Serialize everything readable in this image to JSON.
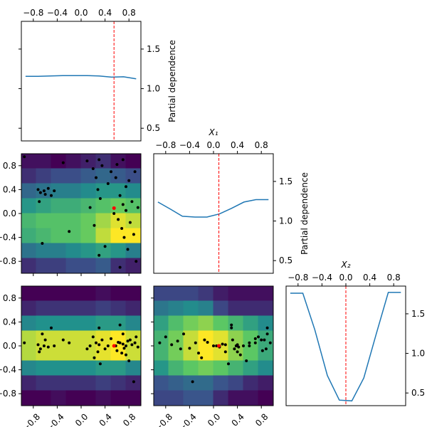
{
  "chart_data": {
    "type": "partial-dependence",
    "ylabel": "Partial dependence",
    "dimension_labels": [
      null,
      "X₁",
      "X₂"
    ],
    "xlim": [
      -1,
      1
    ],
    "xticks": [
      {
        "value": -0.8,
        "label": "−0.8"
      },
      {
        "value": -0.4,
        "label": "−0.4"
      },
      {
        "value": 0,
        "label": "0.0"
      },
      0.4,
      0.8
    ],
    "ylim": [
      0.34,
      1.85
    ],
    "yticks": [
      0.5,
      {
        "value": 1,
        "label": "1.0"
      },
      1.5
    ],
    "line_color": "#1f77b4",
    "minimum_color": "red",
    "point_color": "black",
    "cmap": "viridis_r",
    "pd_x": [
      -0.93,
      -0.72,
      -0.52,
      -0.31,
      -0.11,
      0.1,
      0.3,
      0.51,
      0.71,
      0.92
    ],
    "pd": [
      [
        1.155,
        1.155,
        1.16,
        1.165,
        1.165,
        1.165,
        1.16,
        1.145,
        1.15,
        1.125
      ],
      [
        1.24,
        1.15,
        1.06,
        1.05,
        1.05,
        1.09,
        1.16,
        1.24,
        1.27,
        1.27
      ],
      [
        1.76,
        1.76,
        1.3,
        0.72,
        0.41,
        0.4,
        0.69,
        1.25,
        1.77,
        1.77
      ]
    ],
    "minimum": [
      0.55,
      0.09,
      0.0
    ],
    "samples": [
      [
        -0.95,
        -0.72,
        -0.68,
        -0.62,
        -0.6,
        -0.55,
        -0.5,
        -0.45,
        -0.7,
        -0.65,
        -0.3,
        -0.2,
        0.1,
        0.15,
        0.2,
        0.22,
        0.25,
        0.28,
        0.3,
        0.3,
        0.32,
        0.35,
        0.4,
        0.45,
        0.5,
        0.55,
        0.6,
        0.62,
        0.65,
        0.68,
        0.7,
        0.7,
        0.72,
        0.75,
        0.78,
        0.8,
        0.82,
        0.85,
        0.88,
        0.9,
        0.92,
        0.95,
        0.65,
        0.75,
        0.58
      ],
      [
        0.95,
        0.4,
        0.35,
        0.38,
        0.32,
        0.42,
        0.3,
        0.38,
        0.2,
        -0.5,
        0.85,
        -0.3,
        0.88,
        0.1,
        0.75,
        -0.2,
        0.6,
        0.4,
        0.9,
        -0.7,
        0.25,
        0.8,
        -0.55,
        0.5,
        0.7,
        0.0,
        0.82,
        -0.1,
        0.3,
        -0.25,
        0.15,
        0.9,
        -0.4,
        0.05,
        -0.6,
        0.55,
        -0.15,
        0.2,
        -0.35,
        0.7,
        -0.8,
        0.1,
        -0.9,
        0.45,
        0.6
      ],
      [
        0.05,
        0.02,
        -0.05,
        0.0,
        0.1,
        -0.02,
        0.3,
        0.0,
        -0.1,
        0.2,
        0.1,
        0.05,
        -0.05,
        0.0,
        0.15,
        -0.2,
        0.05,
        -0.1,
        0.3,
        0.02,
        -0.3,
        0.1,
        -0.05,
        0.0,
        0.12,
        0.0,
        -0.08,
        0.06,
        0.35,
        -0.12,
        0.03,
        0.2,
        -0.04,
        0.0,
        0.08,
        -0.25,
        0.1,
        0.02,
        -0.6,
        0.05,
        0.15,
        -0.02,
        0.05,
        -0.15,
        0.0
      ]
    ],
    "pairs": [
      {
        "dims": [
          0,
          1
        ],
        "z": [
          [
            1.7,
            1.7,
            1.75,
            1.7,
            1.65,
            1.6,
            1.7,
            1.75
          ],
          [
            1.6,
            1.55,
            1.5,
            1.5,
            1.45,
            1.4,
            1.45,
            1.5
          ],
          [
            1.4,
            1.35,
            1.3,
            1.3,
            1.25,
            1.2,
            1.2,
            1.25
          ],
          [
            1.2,
            1.15,
            1.1,
            1.1,
            1.05,
            1.0,
            0.95,
            1.0
          ],
          [
            1.05,
            1.0,
            1.0,
            1.0,
            0.95,
            0.85,
            0.75,
            0.8
          ],
          [
            1.1,
            1.05,
            1.0,
            1.0,
            0.95,
            0.8,
            0.7,
            0.7
          ],
          [
            1.35,
            1.3,
            1.3,
            1.25,
            1.2,
            1.15,
            1.2,
            1.3
          ],
          [
            1.6,
            1.55,
            1.55,
            1.5,
            1.5,
            1.45,
            1.6,
            1.65
          ]
        ]
      },
      {
        "dims": [
          0,
          2
        ],
        "z": [
          [
            1.8,
            1.8,
            1.8,
            1.8,
            1.8,
            1.75,
            1.8,
            1.8
          ],
          [
            1.65,
            1.6,
            1.6,
            1.6,
            1.6,
            1.55,
            1.6,
            1.65
          ],
          [
            1.2,
            1.15,
            1.15,
            1.15,
            1.15,
            1.1,
            1.1,
            1.2
          ],
          [
            0.65,
            0.6,
            0.6,
            0.6,
            0.6,
            0.55,
            0.5,
            0.6
          ],
          [
            0.65,
            0.6,
            0.6,
            0.6,
            0.6,
            0.55,
            0.5,
            0.6
          ],
          [
            1.2,
            1.15,
            1.15,
            1.15,
            1.15,
            1.1,
            1.1,
            1.2
          ],
          [
            1.65,
            1.6,
            1.6,
            1.6,
            1.6,
            1.55,
            1.6,
            1.65
          ],
          [
            1.8,
            1.8,
            1.75,
            1.8,
            1.8,
            1.75,
            1.8,
            1.8
          ]
        ]
      },
      {
        "dims": [
          1,
          2
        ],
        "z": [
          [
            1.6,
            1.6,
            1.6,
            1.65,
            1.75,
            1.8,
            1.8,
            1.8
          ],
          [
            1.4,
            1.35,
            1.3,
            1.35,
            1.6,
            1.7,
            1.7,
            1.7
          ],
          [
            1.2,
            1.05,
            0.95,
            0.9,
            1.0,
            1.1,
            1.2,
            1.3
          ],
          [
            1.1,
            0.95,
            0.8,
            0.7,
            0.75,
            0.9,
            1.0,
            1.15
          ],
          [
            1.1,
            0.95,
            0.8,
            0.7,
            0.75,
            0.9,
            1.0,
            1.15
          ],
          [
            1.25,
            1.1,
            1.0,
            0.95,
            1.0,
            1.1,
            1.2,
            1.3
          ],
          [
            1.55,
            1.5,
            1.45,
            1.45,
            1.55,
            1.6,
            1.7,
            1.75
          ],
          [
            1.6,
            1.6,
            1.55,
            1.55,
            1.7,
            1.8,
            1.8,
            1.85
          ]
        ]
      }
    ]
  }
}
